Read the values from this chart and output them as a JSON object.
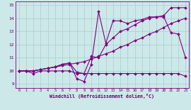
{
  "xlabel": "Windchill (Refroidissement éolien,°C)",
  "bg_color": "#cce8e8",
  "line_color": "#800080",
  "grid_color": "#aacece",
  "xlim": [
    -0.5,
    23.5
  ],
  "ylim": [
    8.7,
    15.3
  ],
  "xticks": [
    0,
    1,
    2,
    3,
    4,
    5,
    6,
    7,
    8,
    9,
    10,
    11,
    12,
    13,
    14,
    15,
    16,
    17,
    18,
    19,
    20,
    21,
    22,
    23
  ],
  "yticks": [
    9,
    10,
    11,
    12,
    13,
    14,
    15
  ],
  "series": [
    {
      "x": [
        0,
        1,
        2,
        3,
        4,
        5,
        6,
        7,
        8,
        9,
        10,
        11,
        12,
        13,
        14,
        15,
        16,
        17,
        18,
        19,
        20,
        21,
        22,
        23
      ],
      "y": [
        10.0,
        10.0,
        9.8,
        10.0,
        10.0,
        10.0,
        10.0,
        10.0,
        9.8,
        9.8,
        9.8,
        9.8,
        9.8,
        9.8,
        9.8,
        9.8,
        9.8,
        9.8,
        9.8,
        9.8,
        9.8,
        9.8,
        9.8,
        9.6
      ],
      "marker": "D",
      "markersize": 2.0,
      "linewidth": 0.8
    },
    {
      "x": [
        0,
        1,
        2,
        3,
        4,
        5,
        6,
        7,
        8,
        9,
        10,
        11,
        12,
        13,
        14,
        15,
        16,
        17,
        18,
        19,
        20,
        21,
        22,
        23
      ],
      "y": [
        10.0,
        10.0,
        10.0,
        10.1,
        10.2,
        10.3,
        10.4,
        10.5,
        10.6,
        10.7,
        10.9,
        11.1,
        11.3,
        11.5,
        11.8,
        12.0,
        12.3,
        12.5,
        12.8,
        13.0,
        13.3,
        13.6,
        13.8,
        14.0
      ],
      "marker": "D",
      "markersize": 2.0,
      "linewidth": 0.8
    },
    {
      "x": [
        0,
        1,
        2,
        3,
        4,
        5,
        6,
        7,
        8,
        9,
        10,
        11,
        12,
        13,
        14,
        15,
        16,
        17,
        18,
        19,
        20,
        21,
        22,
        23
      ],
      "y": [
        10.0,
        10.0,
        10.0,
        10.1,
        10.2,
        10.3,
        10.5,
        10.6,
        9.9,
        9.8,
        11.1,
        11.0,
        12.0,
        12.5,
        13.0,
        13.2,
        13.5,
        13.8,
        14.0,
        14.1,
        14.2,
        14.8,
        14.8,
        14.8
      ],
      "marker": "D",
      "markersize": 2.0,
      "linewidth": 0.8
    },
    {
      "x": [
        0,
        1,
        2,
        3,
        4,
        5,
        6,
        7,
        8,
        9,
        10,
        11,
        12,
        13,
        14,
        15,
        16,
        17,
        18,
        19,
        20,
        21,
        22,
        23
      ],
      "y": [
        10.0,
        10.0,
        10.0,
        10.1,
        10.2,
        10.3,
        10.5,
        10.6,
        9.4,
        9.2,
        10.5,
        14.5,
        12.1,
        13.8,
        13.8,
        13.6,
        13.8,
        13.9,
        14.1,
        14.1,
        14.1,
        12.9,
        12.8,
        11.0
      ],
      "marker": "D",
      "markersize": 2.0,
      "linewidth": 0.8
    }
  ]
}
